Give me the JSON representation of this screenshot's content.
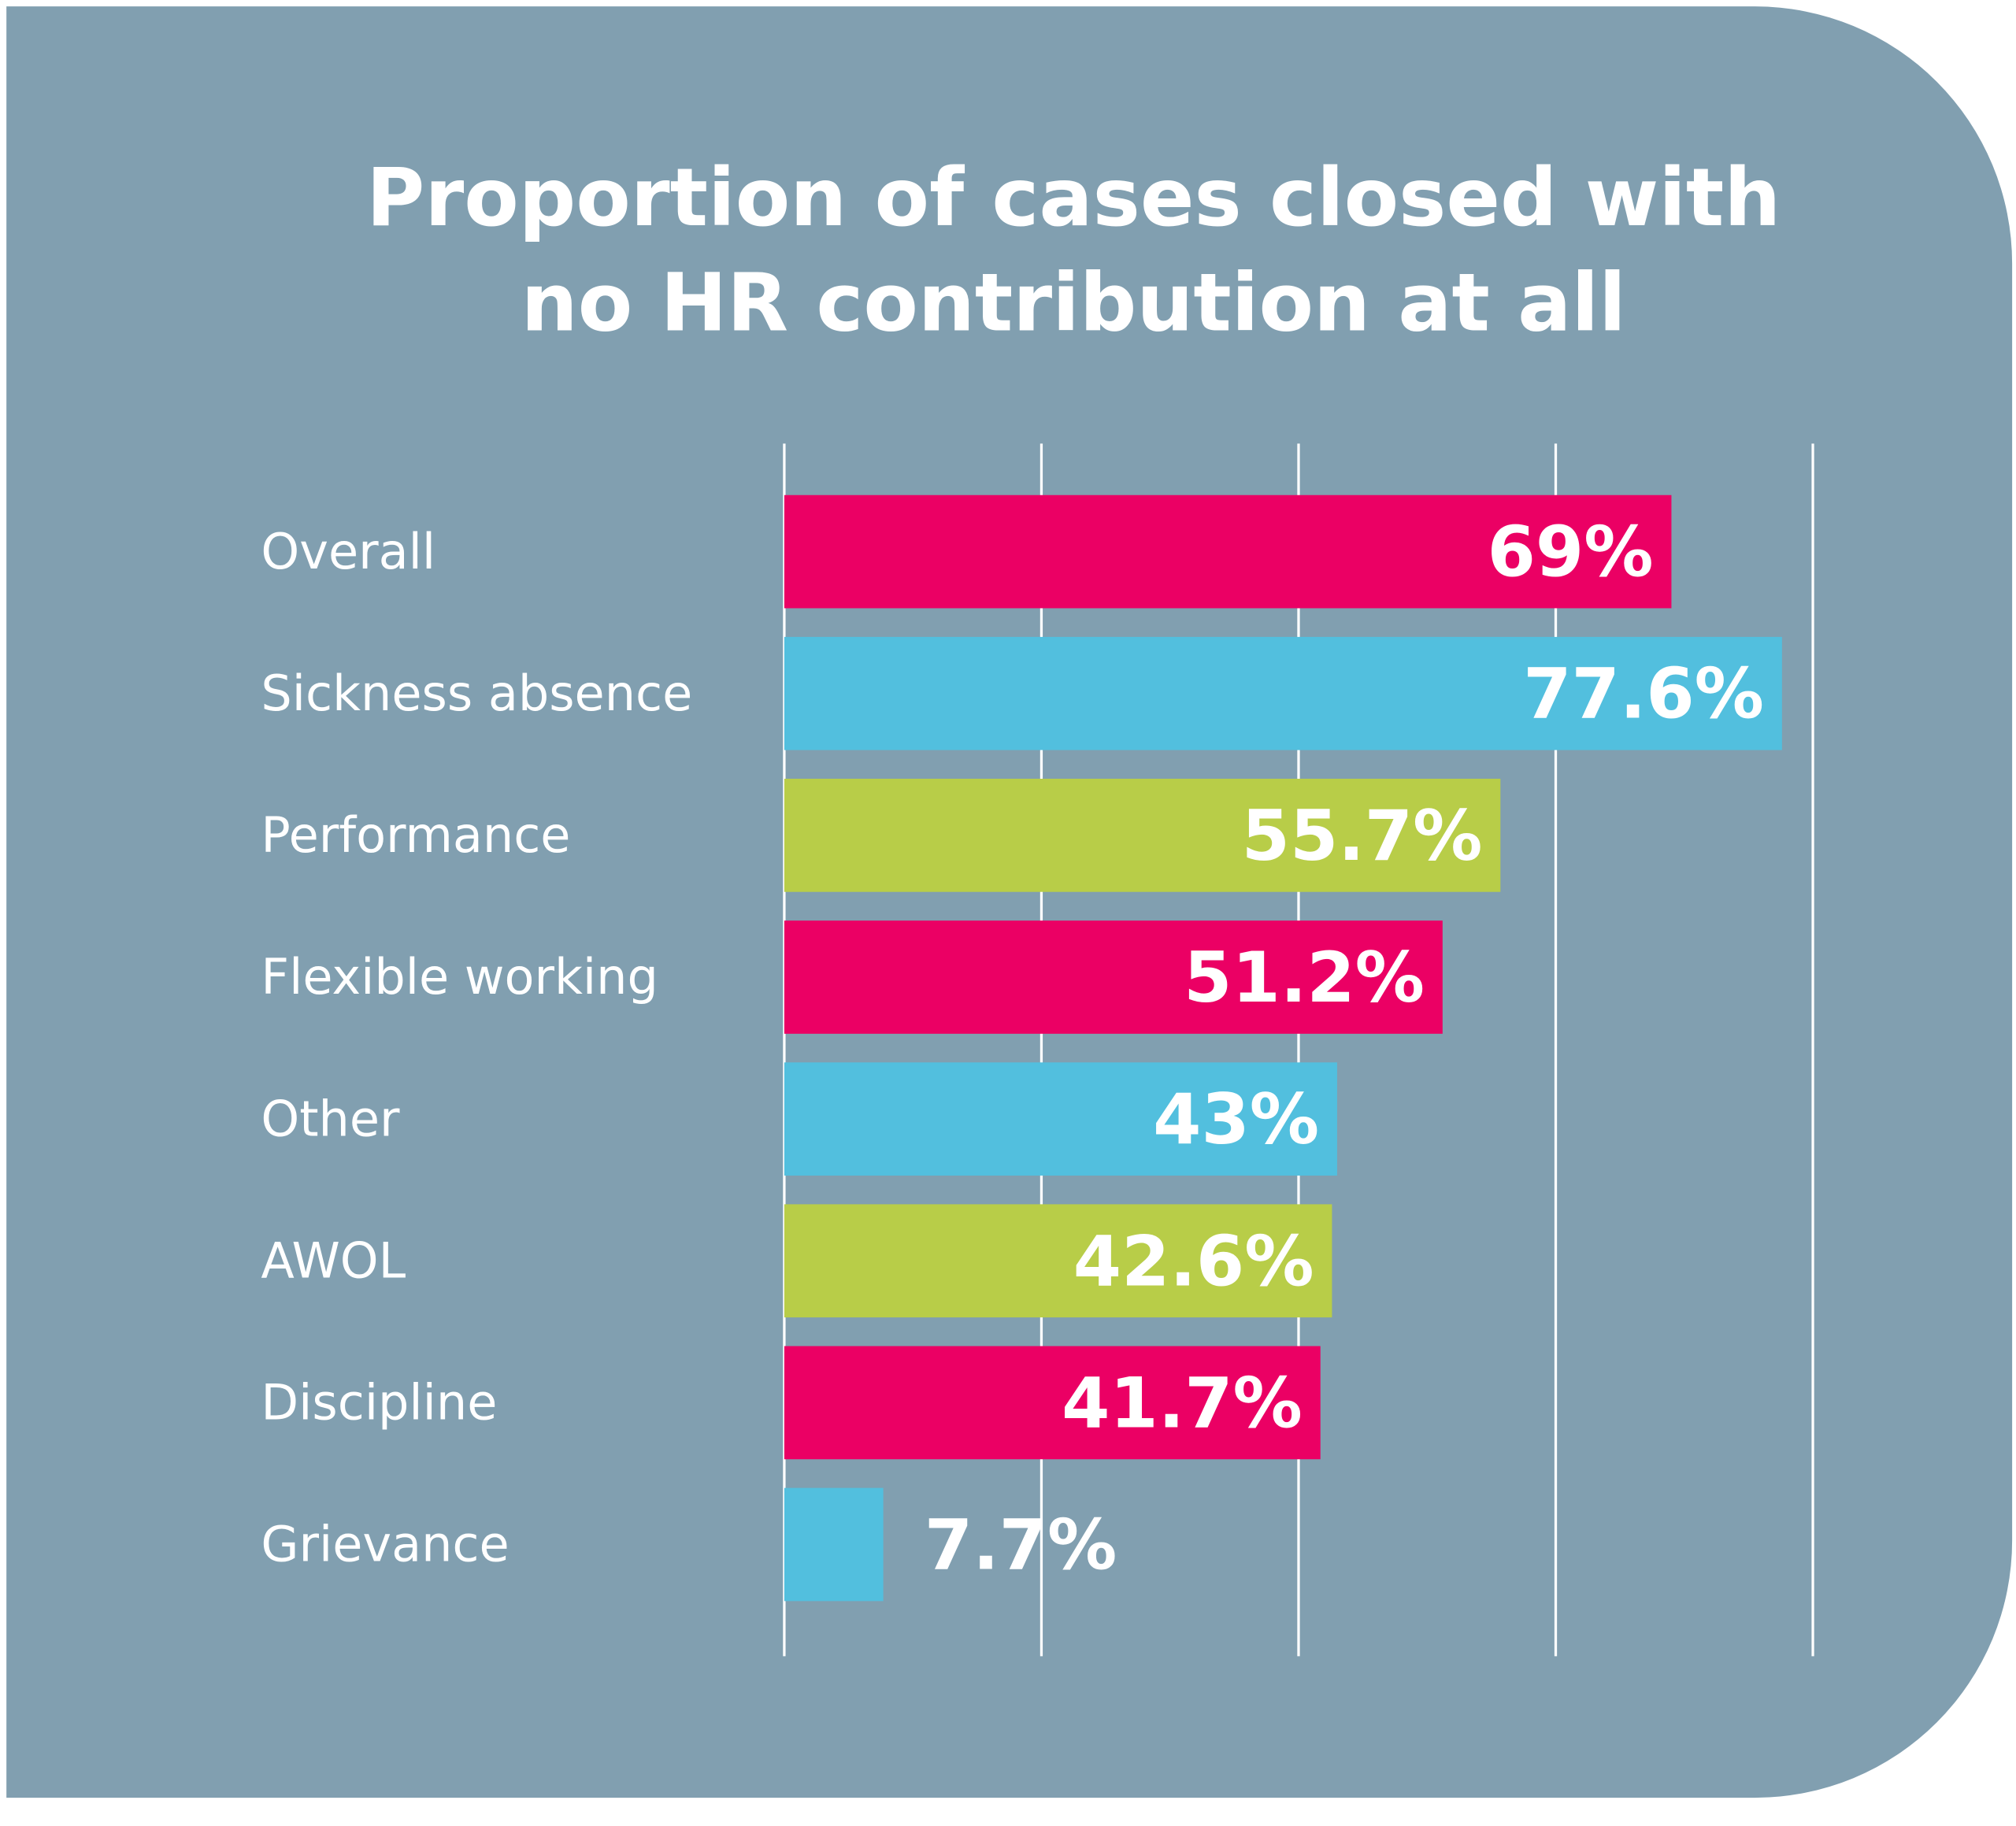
{
  "chart_data": {
    "type": "bar",
    "orientation": "horizontal",
    "title": "Proportion of cases closed with no HR contribution at all",
    "title_lines": [
      "Proportion of cases closed with",
      "no HR contribution at all"
    ],
    "categories": [
      "Overall",
      "Sickness absence",
      "Performance",
      "Flexible working",
      "Other",
      "AWOL",
      "Discipline",
      "Grievance"
    ],
    "values": [
      69,
      77.6,
      55.7,
      51.2,
      43,
      42.6,
      41.7,
      7.7
    ],
    "value_labels": [
      "69%",
      "77.6%",
      "55.7%",
      "51.2%",
      "43%",
      "42.6%",
      "41.7%",
      "7.7%"
    ],
    "bar_colors": [
      "#eb0064",
      "#52bfde",
      "#b8cd48",
      "#eb0064",
      "#52bfde",
      "#b8cd48",
      "#eb0064",
      "#52bfde"
    ],
    "xlim": [
      0,
      80
    ],
    "gridlines": [
      0,
      20,
      40,
      60,
      80
    ],
    "grid": true,
    "xlabel": "",
    "ylabel": "",
    "background_color": "#819fb0"
  }
}
